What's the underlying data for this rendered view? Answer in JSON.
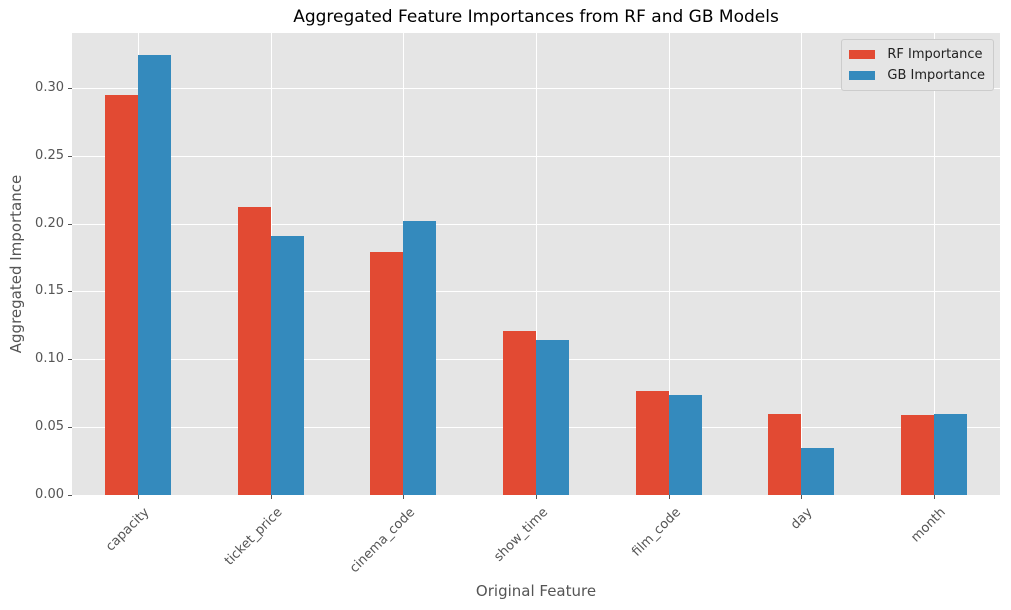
{
  "chart_data": {
    "type": "bar",
    "title": "Aggregated Feature Importances from RF and GB Models",
    "xlabel": "Original Feature",
    "ylabel": "Aggregated Importance",
    "categories": [
      "capacity",
      "ticket_price",
      "cinema_code",
      "show_time",
      "film_code",
      "day",
      "month"
    ],
    "series": [
      {
        "name": "RF Importance",
        "color": "#e24a33",
        "values": [
          0.295,
          0.212,
          0.179,
          0.121,
          0.077,
          0.06,
          0.059
        ]
      },
      {
        "name": "GB Importance",
        "color": "#348abd",
        "values": [
          0.324,
          0.191,
          0.202,
          0.114,
          0.074,
          0.035,
          0.06
        ]
      }
    ],
    "ylim": [
      0,
      0.3405
    ],
    "yticks": [
      "0.00",
      "0.05",
      "0.10",
      "0.15",
      "0.20",
      "0.25",
      "0.30"
    ],
    "grid": true,
    "legend_position": "upper right",
    "background": "#e5e5e5"
  }
}
